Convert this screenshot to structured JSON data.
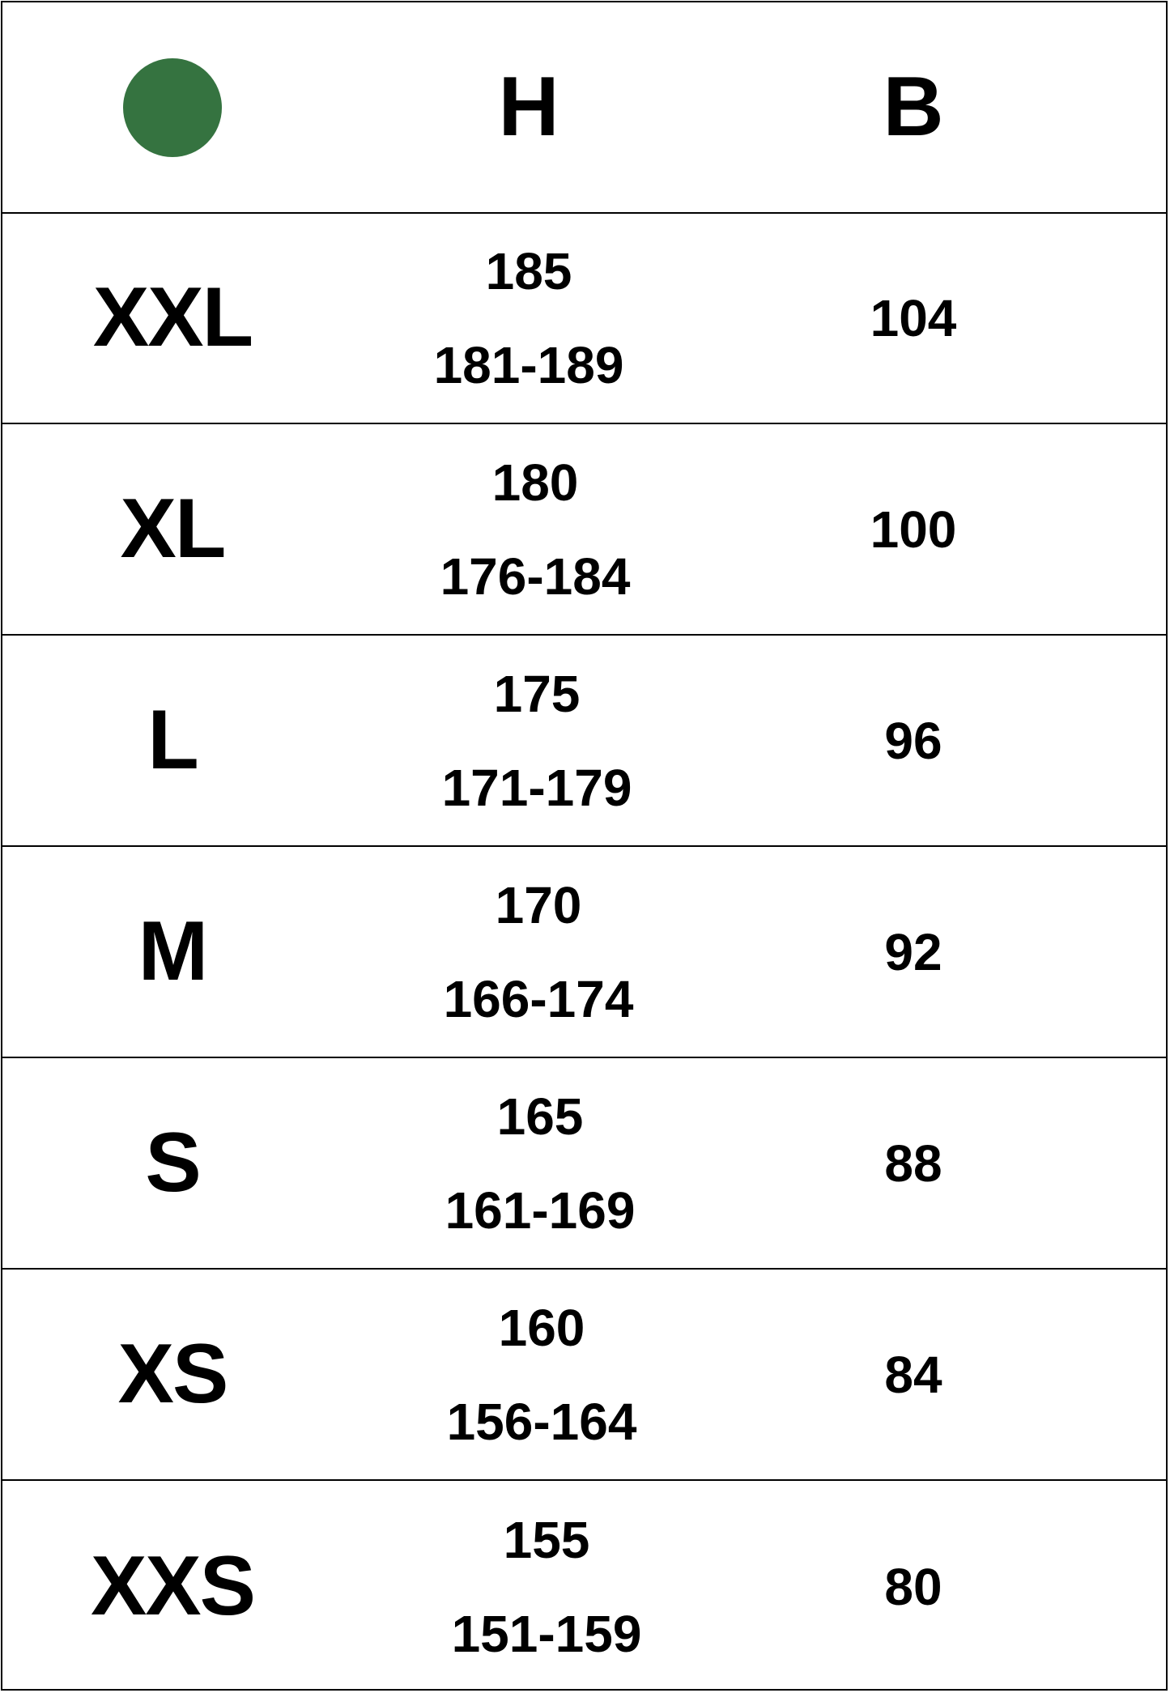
{
  "header": {
    "icon": "green-circle",
    "icon_color": "#357340",
    "col_height": "H",
    "col_bust": "B"
  },
  "rows": [
    {
      "size": "XXL",
      "height": "185",
      "height_range": "181-189",
      "bust": "104"
    },
    {
      "size": "XL",
      "height": "180",
      "height_range": "176-184",
      "bust": "100"
    },
    {
      "size": "L",
      "height": "175",
      "height_range": "171-179",
      "bust": "96"
    },
    {
      "size": "M",
      "height": "170",
      "height_range": "166-174",
      "bust": "92"
    },
    {
      "size": "S",
      "height": "165",
      "height_range": "161-169",
      "bust": "88"
    },
    {
      "size": "XS",
      "height": "160",
      "height_range": "156-164",
      "bust": "84"
    },
    {
      "size": "XXS",
      "height": "155",
      "height_range": "151-159",
      "bust": "80"
    }
  ]
}
